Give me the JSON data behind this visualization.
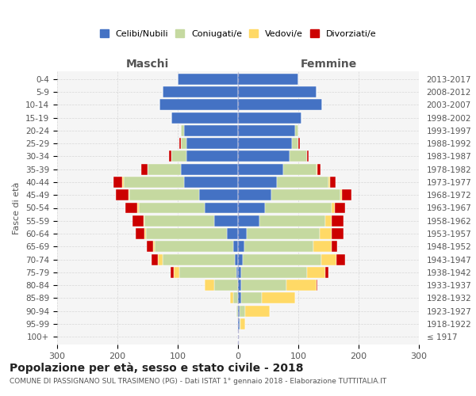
{
  "age_groups": [
    "100+",
    "95-99",
    "90-94",
    "85-89",
    "80-84",
    "75-79",
    "70-74",
    "65-69",
    "60-64",
    "55-59",
    "50-54",
    "45-49",
    "40-44",
    "35-39",
    "30-34",
    "25-29",
    "20-24",
    "15-19",
    "10-14",
    "5-9",
    "0-4"
  ],
  "birth_years": [
    "≤ 1917",
    "1918-1922",
    "1923-1927",
    "1928-1932",
    "1933-1937",
    "1938-1942",
    "1943-1947",
    "1948-1952",
    "1953-1957",
    "1958-1962",
    "1963-1967",
    "1968-1972",
    "1973-1977",
    "1978-1982",
    "1983-1987",
    "1988-1992",
    "1993-1997",
    "1998-2002",
    "2003-2007",
    "2008-2012",
    "2013-2017"
  ],
  "males": {
    "celibi": [
      0,
      0,
      0,
      0,
      0,
      2,
      5,
      8,
      18,
      40,
      55,
      65,
      90,
      95,
      85,
      85,
      90,
      110,
      130,
      125,
      100
    ],
    "coniugati": [
      0,
      0,
      2,
      8,
      40,
      95,
      120,
      130,
      135,
      115,
      110,
      115,
      100,
      55,
      25,
      10,
      5,
      0,
      0,
      0,
      0
    ],
    "vedovi": [
      0,
      0,
      0,
      5,
      15,
      10,
      8,
      3,
      2,
      2,
      2,
      2,
      2,
      0,
      0,
      0,
      0,
      0,
      0,
      0,
      0
    ],
    "divorziati": [
      0,
      0,
      0,
      0,
      0,
      5,
      10,
      10,
      15,
      18,
      20,
      20,
      15,
      10,
      5,
      2,
      0,
      0,
      0,
      0,
      0
    ]
  },
  "females": {
    "nubili": [
      0,
      2,
      2,
      5,
      5,
      5,
      8,
      10,
      15,
      35,
      45,
      55,
      65,
      75,
      85,
      90,
      95,
      105,
      140,
      130,
      100
    ],
    "coniugate": [
      0,
      2,
      10,
      35,
      75,
      110,
      130,
      115,
      120,
      110,
      110,
      115,
      85,
      55,
      30,
      10,
      5,
      0,
      0,
      0,
      0
    ],
    "vedove": [
      0,
      8,
      40,
      55,
      50,
      30,
      25,
      30,
      20,
      10,
      5,
      3,
      2,
      2,
      0,
      0,
      0,
      0,
      0,
      0,
      0
    ],
    "divorziate": [
      0,
      0,
      0,
      0,
      2,
      5,
      15,
      10,
      20,
      20,
      18,
      15,
      10,
      5,
      2,
      2,
      0,
      0,
      0,
      0,
      0
    ]
  },
  "colors": {
    "celibi": "#4472C4",
    "coniugati": "#C5D9A0",
    "vedovi": "#FFD966",
    "divorziati": "#CC0000"
  },
  "legend_labels": [
    "Celibi/Nubili",
    "Coniugati/e",
    "Vedovi/e",
    "Divorziati/e"
  ],
  "title": "Popolazione per età, sesso e stato civile - 2018",
  "subtitle": "COMUNE DI PASSIGNANO SUL TRASIMENO (PG) - Dati ISTAT 1° gennaio 2018 - Elaborazione TUTTITALIA.IT",
  "xlabel_left": "Maschi",
  "xlabel_right": "Femmine",
  "ylabel_left": "Fasce di età",
  "xlim": 300,
  "bg_color": "#ffffff",
  "grid_color": "#cccccc"
}
